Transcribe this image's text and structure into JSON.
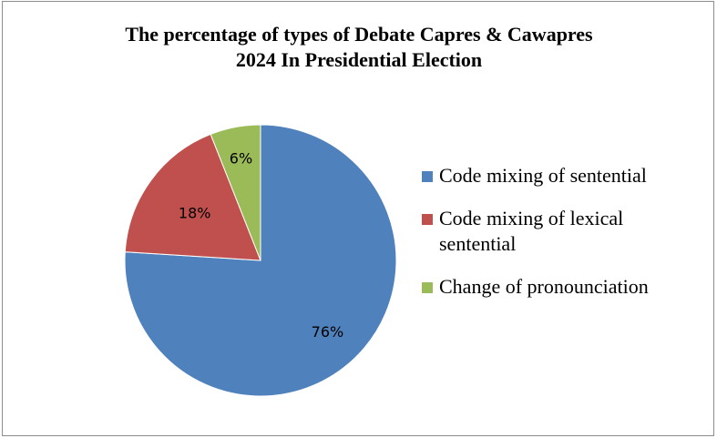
{
  "chart_data": {
    "type": "pie",
    "title": "The percentage of types of Debate Capres & Cawapres",
    "subtitle": "2024 In Presidential Election",
    "slices": [
      {
        "label": "Code mixing of sentential",
        "value": 76,
        "data_label": "76%",
        "color": "#4f81bd"
      },
      {
        "label": "Code mixing of lexical sentential",
        "value": 18,
        "data_label": "18%",
        "color": "#c0504d"
      },
      {
        "label": "Change of pronounciation",
        "value": 6,
        "data_label": "6%",
        "color": "#9bbb59"
      }
    ],
    "legend_position": "right"
  }
}
